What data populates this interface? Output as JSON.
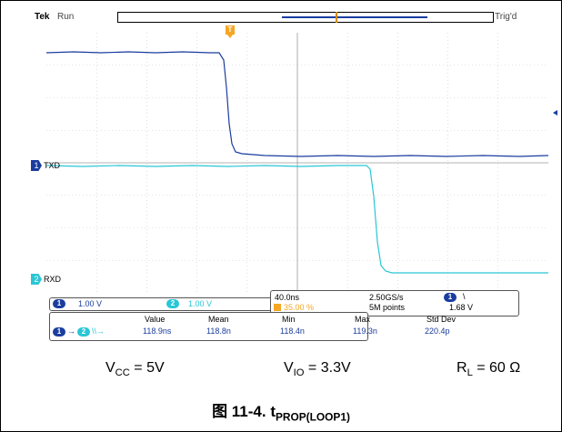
{
  "header": {
    "brand": "Tek",
    "run_state": "Run",
    "trigger_state": "Trig'd",
    "trigger_marker": "T"
  },
  "channels": {
    "ch1": {
      "number": "1",
      "label": "TXD",
      "color": "#1a3d9e",
      "scale": "1.00 V"
    },
    "ch2": {
      "number": "2",
      "label": "RXD",
      "color": "#29c6d6",
      "scale": "1.00 V"
    }
  },
  "timebase": {
    "horizontal": "40.0ns",
    "sample_rate": "2.50GS/s",
    "trigger_channel": "1",
    "trigger_slope": "\\",
    "trigger_position": "35.00 %",
    "record_length": "5M points",
    "trigger_level": "1.68 V"
  },
  "measurement": {
    "source_a": "1",
    "source_b": "2",
    "arrow": "→",
    "edge_icon": "\\\\→",
    "headers": [
      "Value",
      "Mean",
      "Min",
      "Max",
      "Std Dev"
    ],
    "values": [
      "118.9ns",
      "118.8n",
      "118.4n",
      "119.3n",
      "220.4p"
    ]
  },
  "params": {
    "vcc_prefix": "V",
    "vcc_sub": "CC",
    "vcc_value": " = 5V",
    "vio_prefix": "V",
    "vio_sub": "IO",
    "vio_value": " = 3.3V",
    "rl_prefix": "R",
    "rl_sub": "L",
    "rl_value": " = 60 Ω"
  },
  "caption": {
    "prefix": "图 11-4. t",
    "sub": "PROP(LOOP1)"
  }
}
